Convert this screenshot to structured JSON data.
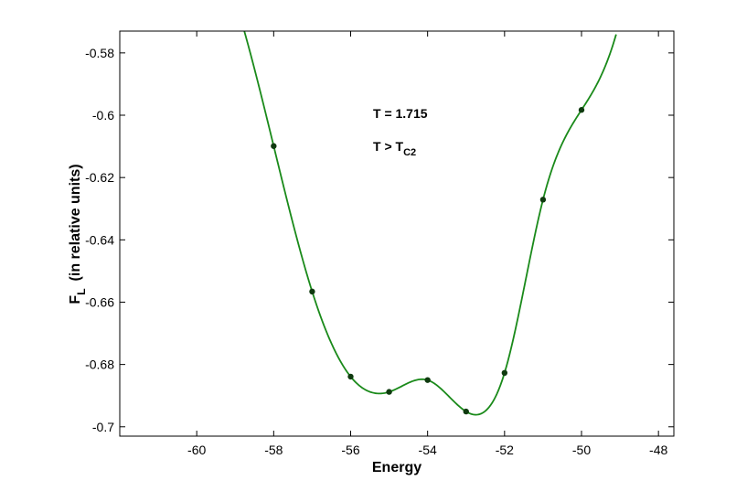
{
  "chart_data": {
    "type": "line",
    "title": "",
    "xlabel": "Energy",
    "ylabel": {
      "main": "F",
      "subscript": "L",
      "suffix": "(in relative units)"
    },
    "xlim": [
      -62,
      -47.6
    ],
    "ylim": [
      -0.703,
      -0.573
    ],
    "xticks": [
      -60,
      -58,
      -56,
      -54,
      -52,
      -50,
      -48
    ],
    "yticks": [
      -0.58,
      -0.6,
      -0.62,
      -0.64,
      -0.66,
      -0.68,
      -0.7
    ],
    "xtick_labels": [
      "-60",
      "-58",
      "-56",
      "-54",
      "-52",
      "-50",
      "-48"
    ],
    "ytick_labels": [
      "-0.58",
      "-0.6",
      "-0.62",
      "-0.64",
      "-0.66",
      "-0.68",
      "-0.7"
    ],
    "grid": false,
    "line_color": "#1a8a1a",
    "marker_color": "#0f3a0f",
    "series": [
      {
        "x": [
          -58,
          -57,
          -56,
          -55,
          -54,
          -53,
          -52,
          -51,
          -50
        ],
        "y": [
          -0.6099,
          -0.6566,
          -0.6839,
          -0.6888,
          -0.685,
          -0.6951,
          -0.6827,
          -0.6271,
          -0.5983
        ]
      }
    ],
    "annotations": [
      {
        "id": "temperature",
        "text": "T = 1.715"
      },
      {
        "id": "relation",
        "main": "T > T",
        "subscript": "C2"
      }
    ]
  }
}
